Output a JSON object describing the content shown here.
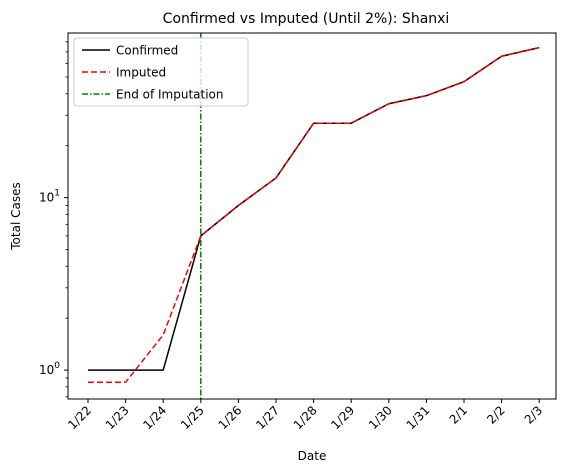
{
  "chart_data": {
    "type": "line",
    "title": "Confirmed vs Imputed (Until 2%): Shanxi",
    "xlabel": "Date",
    "ylabel": "Total Cases",
    "yscale": "log",
    "ylim": [
      0.68,
      90
    ],
    "y_major_ticks": [
      {
        "value": 1,
        "base": "10",
        "exp": "0"
      },
      {
        "value": 10,
        "base": "10",
        "exp": "1"
      }
    ],
    "y_minor_ticks": [
      0.7,
      0.8,
      0.9,
      2,
      3,
      4,
      5,
      6,
      7,
      8,
      9,
      20,
      30,
      40,
      50,
      60,
      70,
      80
    ],
    "categories": [
      "1/22",
      "1/23",
      "1/24",
      "1/25",
      "1/26",
      "1/27",
      "1/28",
      "1/29",
      "1/30",
      "1/31",
      "2/1",
      "2/2",
      "2/3"
    ],
    "series": [
      {
        "name": "Confirmed",
        "color": "#000000",
        "style": "solid",
        "values": [
          1,
          1,
          1,
          6,
          9,
          13,
          27,
          27,
          35,
          39,
          47,
          66,
          74
        ]
      },
      {
        "name": "Imputed",
        "color": "#ff0000",
        "style": "dashed",
        "values": [
          0.85,
          0.85,
          1.6,
          6,
          9,
          13,
          27,
          27,
          35,
          39,
          47,
          66,
          74
        ]
      }
    ],
    "vline": {
      "name": "End of Imputation",
      "color": "#008000",
      "style": "dashdot",
      "x": "1/25"
    },
    "legend_position": "top-left",
    "grid": false
  }
}
